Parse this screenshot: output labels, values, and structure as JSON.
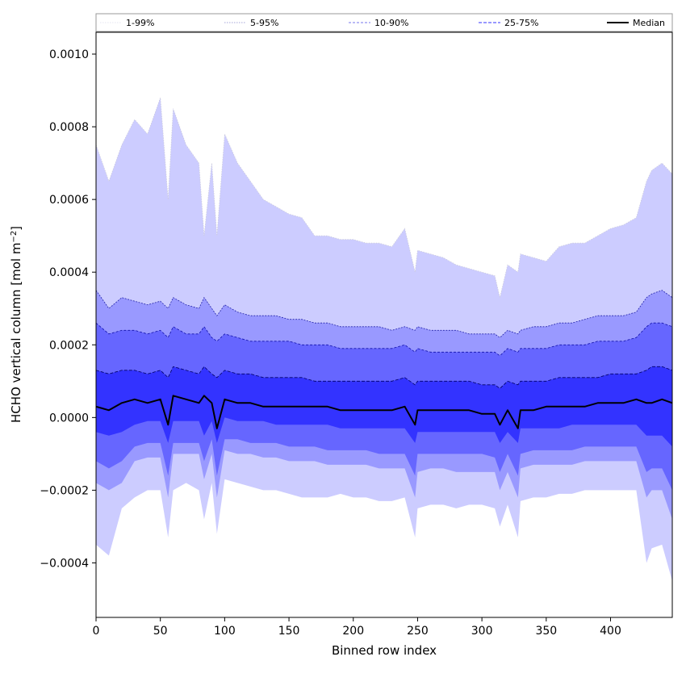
{
  "chart_data": {
    "type": "area",
    "title": "",
    "xlabel": "Binned row index",
    "ylabel_main": "HCHO vertical column [mol m",
    "ylabel_sup": "−2",
    "ylabel_tail": "]",
    "xlim": [
      0,
      448
    ],
    "ylim": [
      -0.00055,
      0.00106
    ],
    "x_ticks": [
      0,
      50,
      100,
      150,
      200,
      250,
      300,
      350,
      400
    ],
    "x_tick_labels": [
      "0",
      "50",
      "100",
      "150",
      "200",
      "250",
      "300",
      "350",
      "400"
    ],
    "y_ticks": [
      -0.0004,
      -0.0002,
      0.0,
      0.0002,
      0.0004,
      0.0006,
      0.0008,
      0.001
    ],
    "y_tick_labels": [
      "−0.0004",
      "−0.0002",
      "0.0000",
      "0.0002",
      "0.0004",
      "0.0006",
      "0.0008",
      "0.0010"
    ],
    "grid": false,
    "legend_position": "top, above plot (single row)",
    "colors": {
      "band_1_99": "#ccccff",
      "band_5_95": "#9999ff",
      "band_10_90": "#6666ff",
      "band_25_75": "#3333ff",
      "median": "#000000"
    },
    "x_sample": [
      0,
      10,
      20,
      30,
      40,
      50,
      56,
      60,
      70,
      80,
      84,
      90,
      94,
      100,
      110,
      120,
      130,
      140,
      150,
      160,
      170,
      180,
      190,
      200,
      210,
      220,
      230,
      240,
      248,
      250,
      260,
      270,
      280,
      290,
      300,
      310,
      314,
      320,
      328,
      330,
      340,
      350,
      360,
      370,
      380,
      390,
      400,
      410,
      420,
      428,
      432,
      440,
      448
    ],
    "series": [
      {
        "name": "1-99%",
        "upper": [
          0.00075,
          0.00065,
          0.00075,
          0.00082,
          0.00078,
          0.00088,
          0.0006,
          0.00085,
          0.00075,
          0.0007,
          0.0005,
          0.0007,
          0.0005,
          0.00078,
          0.0007,
          0.00065,
          0.0006,
          0.00058,
          0.00056,
          0.00055,
          0.0005,
          0.0005,
          0.00049,
          0.00049,
          0.00048,
          0.00048,
          0.00047,
          0.00052,
          0.0004,
          0.00046,
          0.00045,
          0.00044,
          0.00042,
          0.00041,
          0.0004,
          0.00039,
          0.00033,
          0.00042,
          0.0004,
          0.00045,
          0.00044,
          0.00043,
          0.00047,
          0.00048,
          0.00048,
          0.0005,
          0.00052,
          0.00053,
          0.00055,
          0.00065,
          0.00068,
          0.0007,
          0.00067
        ],
        "lower": [
          -0.00035,
          -0.00038,
          -0.00025,
          -0.00022,
          -0.0002,
          -0.0002,
          -0.00033,
          -0.0002,
          -0.00018,
          -0.0002,
          -0.00028,
          -0.00018,
          -0.00032,
          -0.00017,
          -0.00018,
          -0.00019,
          -0.0002,
          -0.0002,
          -0.00021,
          -0.00022,
          -0.00022,
          -0.00022,
          -0.00021,
          -0.00022,
          -0.00022,
          -0.00023,
          -0.00023,
          -0.00022,
          -0.00033,
          -0.00025,
          -0.00024,
          -0.00024,
          -0.00025,
          -0.00024,
          -0.00024,
          -0.00025,
          -0.0003,
          -0.00024,
          -0.00033,
          -0.00023,
          -0.00022,
          -0.00022,
          -0.00021,
          -0.00021,
          -0.0002,
          -0.0002,
          -0.0002,
          -0.0002,
          -0.0002,
          -0.0004,
          -0.00036,
          -0.00035,
          -0.00045
        ]
      },
      {
        "name": "5-95%",
        "upper": [
          0.00035,
          0.0003,
          0.00033,
          0.00032,
          0.00031,
          0.00032,
          0.0003,
          0.00033,
          0.00031,
          0.0003,
          0.00033,
          0.0003,
          0.00028,
          0.00031,
          0.00029,
          0.00028,
          0.00028,
          0.00028,
          0.00027,
          0.00027,
          0.00026,
          0.00026,
          0.00025,
          0.00025,
          0.00025,
          0.00025,
          0.00024,
          0.00025,
          0.00024,
          0.00025,
          0.00024,
          0.00024,
          0.00024,
          0.00023,
          0.00023,
          0.00023,
          0.00022,
          0.00024,
          0.00023,
          0.00024,
          0.00025,
          0.00025,
          0.00026,
          0.00026,
          0.00027,
          0.00028,
          0.00028,
          0.00028,
          0.00029,
          0.00033,
          0.00034,
          0.00035,
          0.00033
        ],
        "lower": [
          -0.00018,
          -0.0002,
          -0.00018,
          -0.00012,
          -0.00011,
          -0.00011,
          -0.00022,
          -0.0001,
          -0.0001,
          -0.0001,
          -0.00017,
          -0.0001,
          -0.00022,
          -9e-05,
          -0.0001,
          -0.0001,
          -0.00011,
          -0.00011,
          -0.00012,
          -0.00012,
          -0.00012,
          -0.00013,
          -0.00013,
          -0.00013,
          -0.00013,
          -0.00014,
          -0.00014,
          -0.00014,
          -0.00022,
          -0.00015,
          -0.00014,
          -0.00014,
          -0.00015,
          -0.00015,
          -0.00015,
          -0.00015,
          -0.0002,
          -0.00015,
          -0.00022,
          -0.00014,
          -0.00013,
          -0.00013,
          -0.00013,
          -0.00013,
          -0.00012,
          -0.00012,
          -0.00012,
          -0.00012,
          -0.00012,
          -0.00022,
          -0.0002,
          -0.0002,
          -0.00028
        ]
      },
      {
        "name": "10-90%",
        "upper": [
          0.00026,
          0.00023,
          0.00024,
          0.00024,
          0.00023,
          0.00024,
          0.00022,
          0.00025,
          0.00023,
          0.00023,
          0.00025,
          0.00022,
          0.00021,
          0.00023,
          0.00022,
          0.00021,
          0.00021,
          0.00021,
          0.00021,
          0.0002,
          0.0002,
          0.0002,
          0.00019,
          0.00019,
          0.00019,
          0.00019,
          0.00019,
          0.0002,
          0.00018,
          0.00019,
          0.00018,
          0.00018,
          0.00018,
          0.00018,
          0.00018,
          0.00018,
          0.00017,
          0.00019,
          0.00018,
          0.00019,
          0.00019,
          0.00019,
          0.0002,
          0.0002,
          0.0002,
          0.00021,
          0.00021,
          0.00021,
          0.00022,
          0.00025,
          0.00026,
          0.00026,
          0.00025
        ],
        "lower": [
          -0.00012,
          -0.00014,
          -0.00012,
          -8e-05,
          -7e-05,
          -7e-05,
          -0.00016,
          -7e-05,
          -7e-05,
          -7e-05,
          -0.00012,
          -6e-05,
          -0.00016,
          -6e-05,
          -6e-05,
          -7e-05,
          -7e-05,
          -7e-05,
          -8e-05,
          -8e-05,
          -8e-05,
          -9e-05,
          -9e-05,
          -9e-05,
          -9e-05,
          -0.0001,
          -0.0001,
          -0.0001,
          -0.00016,
          -0.0001,
          -0.0001,
          -0.0001,
          -0.0001,
          -0.0001,
          -0.0001,
          -0.00011,
          -0.00015,
          -0.0001,
          -0.00016,
          -0.0001,
          -9e-05,
          -9e-05,
          -9e-05,
          -9e-05,
          -8e-05,
          -8e-05,
          -8e-05,
          -8e-05,
          -8e-05,
          -0.00015,
          -0.00014,
          -0.00014,
          -0.0002
        ]
      },
      {
        "name": "25-75%",
        "upper": [
          0.00013,
          0.00012,
          0.00013,
          0.00013,
          0.00012,
          0.00013,
          0.00011,
          0.00014,
          0.00013,
          0.00012,
          0.00014,
          0.00012,
          0.00011,
          0.00013,
          0.00012,
          0.00012,
          0.00011,
          0.00011,
          0.00011,
          0.00011,
          0.0001,
          0.0001,
          0.0001,
          0.0001,
          0.0001,
          0.0001,
          0.0001,
          0.00011,
          9e-05,
          0.0001,
          0.0001,
          0.0001,
          0.0001,
          0.0001,
          9e-05,
          9e-05,
          8e-05,
          0.0001,
          9e-05,
          0.0001,
          0.0001,
          0.0001,
          0.00011,
          0.00011,
          0.00011,
          0.00011,
          0.00012,
          0.00012,
          0.00012,
          0.00013,
          0.00014,
          0.00014,
          0.00013
        ],
        "lower": [
          -4e-05,
          -5e-05,
          -4e-05,
          -2e-05,
          -1e-05,
          -1e-05,
          -7e-05,
          -1e-05,
          -1e-05,
          -1e-05,
          -5e-05,
          -1e-05,
          -7e-05,
          0.0,
          -1e-05,
          -1e-05,
          -1e-05,
          -2e-05,
          -2e-05,
          -2e-05,
          -2e-05,
          -2e-05,
          -3e-05,
          -3e-05,
          -3e-05,
          -3e-05,
          -3e-05,
          -3e-05,
          -7e-05,
          -4e-05,
          -4e-05,
          -4e-05,
          -4e-05,
          -4e-05,
          -4e-05,
          -4e-05,
          -7e-05,
          -4e-05,
          -7e-05,
          -3e-05,
          -3e-05,
          -3e-05,
          -3e-05,
          -2e-05,
          -2e-05,
          -2e-05,
          -2e-05,
          -2e-05,
          -2e-05,
          -5e-05,
          -5e-05,
          -5e-05,
          -8e-05
        ]
      },
      {
        "name": "Median",
        "values": [
          3e-05,
          2e-05,
          4e-05,
          5e-05,
          4e-05,
          5e-05,
          -2e-05,
          6e-05,
          5e-05,
          4e-05,
          6e-05,
          4e-05,
          -3e-05,
          5e-05,
          4e-05,
          4e-05,
          3e-05,
          3e-05,
          3e-05,
          3e-05,
          3e-05,
          3e-05,
          2e-05,
          2e-05,
          2e-05,
          2e-05,
          2e-05,
          3e-05,
          -2e-05,
          2e-05,
          2e-05,
          2e-05,
          2e-05,
          2e-05,
          1e-05,
          1e-05,
          -2e-05,
          2e-05,
          -3e-05,
          2e-05,
          2e-05,
          3e-05,
          3e-05,
          3e-05,
          3e-05,
          4e-05,
          4e-05,
          4e-05,
          5e-05,
          4e-05,
          4e-05,
          5e-05,
          4e-05
        ]
      }
    ]
  }
}
